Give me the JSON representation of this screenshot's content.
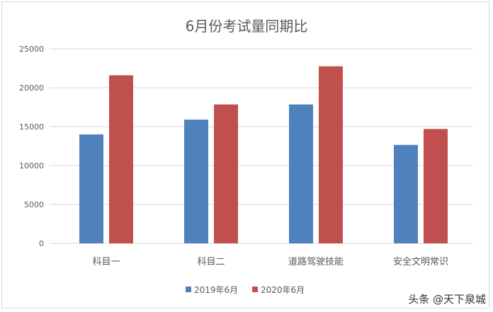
{
  "watermark": "头条 @天下泉城",
  "chart_data": {
    "type": "bar",
    "title": "6月份考试量同期比",
    "categories": [
      "科目一",
      "科目二",
      "道路驾驶技能",
      "安全文明常识"
    ],
    "series": [
      {
        "name": "2019年6月",
        "color": "#4f81bd",
        "values": [
          14000,
          15900,
          17850,
          12650
        ]
      },
      {
        "name": "2020年6月",
        "color": "#c0504d",
        "values": [
          21600,
          17850,
          22750,
          14700
        ]
      }
    ],
    "ylim": [
      0,
      25000
    ],
    "yticks": [
      "0",
      "5000",
      "10000",
      "15000",
      "20000",
      "25000"
    ],
    "grid": true,
    "legend": "bottom"
  }
}
